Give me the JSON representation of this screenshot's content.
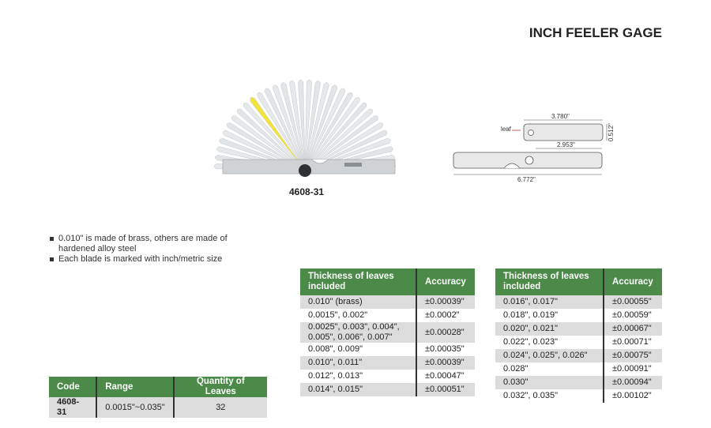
{
  "title": "INCH FEELER GAGE",
  "product": {
    "model": "4608-31",
    "colors": {
      "brass_leaf": "#f2e23a",
      "steel_leaf": "#e6e8ea",
      "header_green": "#4b8a48"
    }
  },
  "diagram": {
    "leaf_label": "leaf",
    "leaf_length": "3.780\"",
    "leaf_width": "0.512\"",
    "pivot_distance": "2.953\"",
    "total_length": "6.772\""
  },
  "notes": [
    "0.010\" is made of brass, others are made of hardened alloy steel",
    "Each blade is marked with inch/metric size"
  ],
  "spec_table": {
    "headers": [
      "Code",
      "Range",
      "Quantity of Leaves"
    ],
    "row": [
      "4608-31",
      "0.0015\"~0.035\"",
      "32"
    ]
  },
  "accuracy_table_1": {
    "headers": [
      "Thickness of leaves included",
      "Accuracy"
    ],
    "rows": [
      [
        "0.010\" (brass)",
        "±0.00039\""
      ],
      [
        "0.0015\", 0.002\"",
        "±0.0002\""
      ],
      [
        "0.0025\", 0.003\", 0.004\", 0.005\", 0.006\", 0.007\"",
        "±0.00028\""
      ],
      [
        "0.008\", 0.009\"",
        "±0.00035\""
      ],
      [
        "0.010\", 0.011\"",
        "±0.00039\""
      ],
      [
        "0.012\", 0.013\"",
        "±0.00047\""
      ],
      [
        "0.014\", 0.015\"",
        "±0.00051\""
      ]
    ]
  },
  "accuracy_table_2": {
    "headers": [
      "Thickness of leaves included",
      "Accuracy"
    ],
    "rows": [
      [
        "0.016\", 0.017\"",
        "±0.00055\""
      ],
      [
        "0.018\", 0.019\"",
        "±0.00059\""
      ],
      [
        "0.020\", 0.021\"",
        "±0.00067\""
      ],
      [
        "0.022\", 0.023\"",
        "±0.00071\""
      ],
      [
        "0.024\", 0.025\", 0.026\"",
        "±0.00075\""
      ],
      [
        "0.028\"",
        "±0.00091\""
      ],
      [
        "0.030\"",
        "±0.00094\""
      ],
      [
        "0.032\", 0.035\"",
        "±0.00102\""
      ]
    ]
  }
}
